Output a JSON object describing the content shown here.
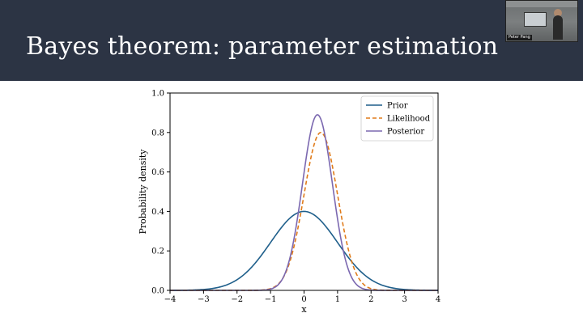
{
  "slide": {
    "title": "Bayes theorem: parameter estimation"
  },
  "video_tile": {
    "participant_name": "Peter Pang"
  },
  "colors": {
    "header_bg": "#2c3444",
    "prior": "#1f5f8b",
    "likelihood": "#e07b1a",
    "posterior": "#7b68b0"
  },
  "chart_data": {
    "type": "line",
    "xlabel": "x",
    "ylabel": "Probability density",
    "xlim": [
      -4,
      4
    ],
    "ylim": [
      0,
      1
    ],
    "xticks": [
      -4,
      -3,
      -2,
      -1,
      0,
      1,
      2,
      3,
      4
    ],
    "xtick_labels": [
      "−4",
      "−3",
      "−2",
      "−1",
      "0",
      "1",
      "2",
      "3",
      "4"
    ],
    "yticks": [
      0.0,
      0.2,
      0.4,
      0.6,
      0.8,
      1.0
    ],
    "ytick_labels": [
      "0.0",
      "0.2",
      "0.4",
      "0.6",
      "0.8",
      "1.0"
    ],
    "legend_position": "top-right",
    "series": [
      {
        "name": "Prior",
        "color": "#1f5f8b",
        "dash": "solid",
        "mean": 0.0,
        "sd": 1.0,
        "peak": 0.4
      },
      {
        "name": "Likelihood",
        "color": "#e07b1a",
        "dash": "dashed",
        "mean": 0.5,
        "sd": 0.5,
        "peak": 0.8
      },
      {
        "name": "Posterior",
        "color": "#7b68b0",
        "dash": "solid",
        "mean": 0.4,
        "sd": 0.447,
        "peak": 0.89
      }
    ]
  }
}
